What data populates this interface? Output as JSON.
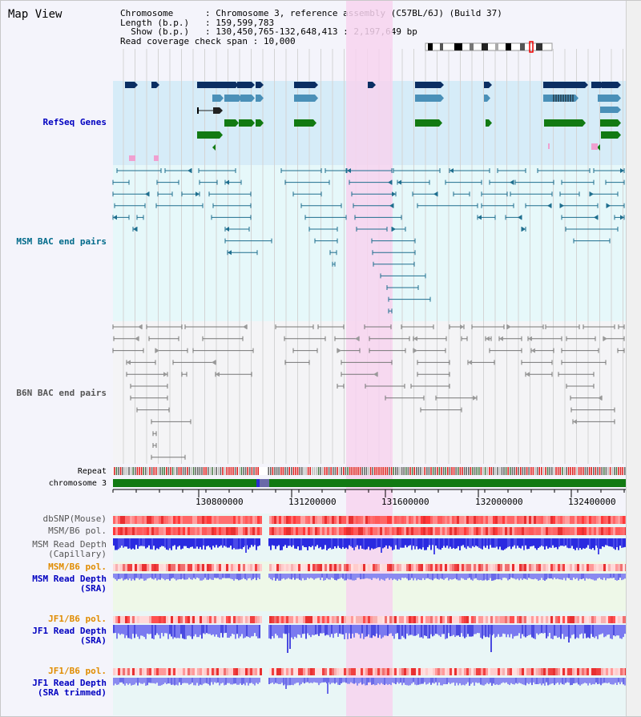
{
  "title": "Map View",
  "info": {
    "chromosome_key": "Chromosome",
    "chromosome_val": "Chromosome 3, reference assembly (C57BL/6J) (Build 37)",
    "length_key": "Length (b.p.)",
    "length_val": "159,599,783",
    "show_key": "Show (b.p.)",
    "show_val": "130,450,765-132,648,413 : 2,197,649 bp",
    "coverage_key": "Read coverage check span",
    "coverage_val": "10,000"
  },
  "tracks": {
    "refseq": "RefSeq Genes",
    "msm_bac": "MSM BAC end pairs",
    "b6n_bac": "B6N BAC end pairs",
    "repeat": "Repeat",
    "chromosome": "chromosome 3",
    "dbsnp": "dbSNP(Mouse)",
    "msm_b6_pol": "MSM/B6 pol.",
    "msm_depth_cap_1": "MSM Read Depth",
    "msm_depth_cap_2": "(Capillary)",
    "msm_b6_pol_2": "MSM/B6 pol.",
    "msm_depth_sra_1": "MSM Read Depth",
    "msm_depth_sra_2": "(SRA)",
    "jf1_b6_pol": "JF1/B6 pol.",
    "jf1_depth_sra_1": "JF1 Read Depth",
    "jf1_depth_sra_2": "(SRA)",
    "jf1_b6_pol_2": "JF1/B6 pol.",
    "jf1_depth_trim_1": "JF1 Read Depth",
    "jf1_depth_trim_2": "(SRA trimmed)"
  },
  "axis": {
    "ticks": [
      "130800000",
      "131200000",
      "131600000",
      "132000000",
      "132400000"
    ]
  },
  "colors": {
    "highlight": "#f7d4ef",
    "refseq_bg": "#d6ecf8",
    "msm_bg": "#e6f8fa",
    "b6n_bg": "#f4f4f6",
    "gene_navy": "#0a2e62",
    "gene_blue": "#4a90b8",
    "gene_green": "#127a12",
    "msm_line": "#1e6e8e",
    "b6n_line": "#777777",
    "depth_blue": "#2a2ae0",
    "depth_light": "#8a8af0",
    "label_blue": "#0000c0",
    "label_teal": "#006a8a",
    "label_gray": "#555555",
    "label_orange": "#e08c00"
  }
}
